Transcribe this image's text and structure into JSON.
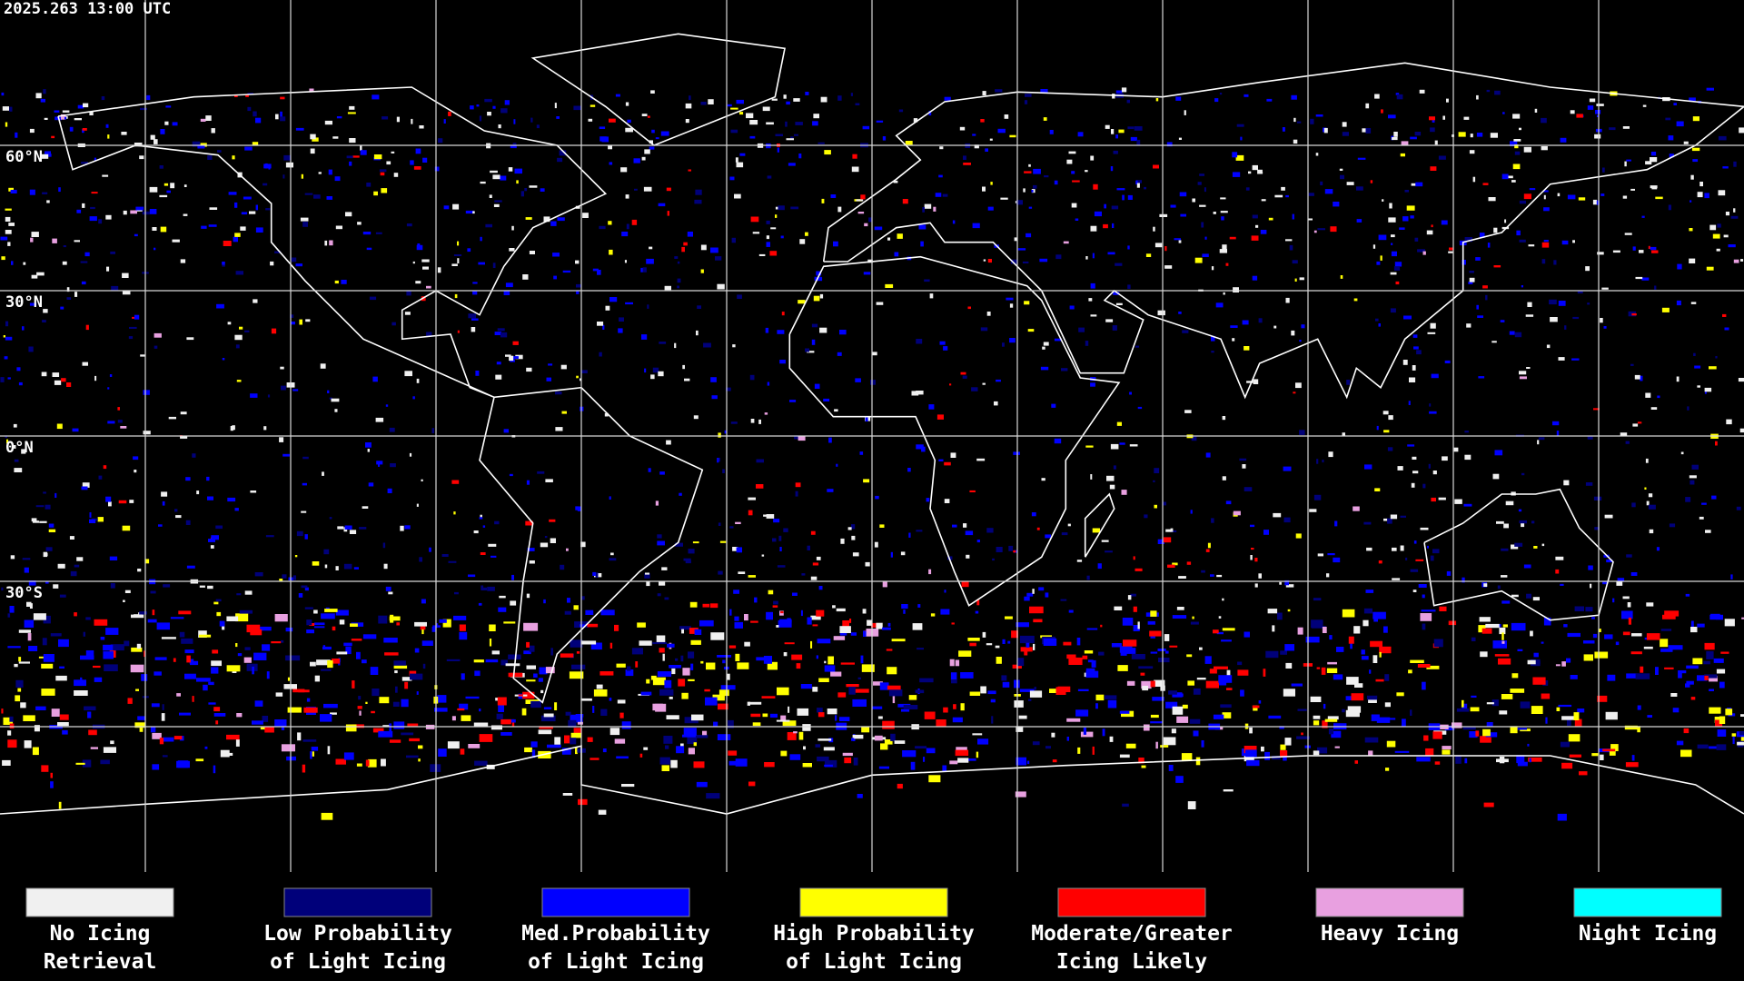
{
  "header": {
    "timestamp": "2025.263 13:00 UTC"
  },
  "map": {
    "latitude_labels": [
      "60°N",
      "30°N",
      "0°N",
      "30°S"
    ]
  },
  "legend": [
    {
      "lines": [
        "No Icing",
        "Retrieval"
      ],
      "color": "#f0f0f0"
    },
    {
      "lines": [
        "Low Probability",
        "of Light Icing"
      ],
      "color": "#00007a"
    },
    {
      "lines": [
        "Med.Probability",
        "of Light Icing"
      ],
      "color": "#0000ff"
    },
    {
      "lines": [
        "High Probability",
        "of Light Icing"
      ],
      "color": "#ffff00"
    },
    {
      "lines": [
        "Moderate/Greater",
        "Icing Likely"
      ],
      "color": "#ff0000"
    },
    {
      "lines": [
        "Heavy Icing"
      ],
      "color": "#e8a0e0"
    },
    {
      "lines": [
        "Night Icing"
      ],
      "color": "#00ffff"
    }
  ]
}
